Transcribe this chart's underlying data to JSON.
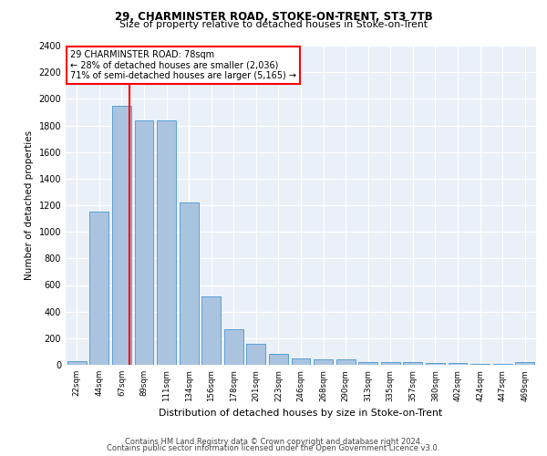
{
  "title1": "29, CHARMINSTER ROAD, STOKE-ON-TRENT, ST3 7TB",
  "title2": "Size of property relative to detached houses in Stoke-on-Trent",
  "xlabel": "Distribution of detached houses by size in Stoke-on-Trent",
  "ylabel": "Number of detached properties",
  "categories": [
    "22sqm",
    "44sqm",
    "67sqm",
    "89sqm",
    "111sqm",
    "134sqm",
    "156sqm",
    "178sqm",
    "201sqm",
    "223sqm",
    "246sqm",
    "268sqm",
    "290sqm",
    "313sqm",
    "335sqm",
    "357sqm",
    "380sqm",
    "402sqm",
    "424sqm",
    "447sqm",
    "469sqm"
  ],
  "values": [
    30,
    1150,
    1950,
    1840,
    1840,
    1220,
    515,
    265,
    155,
    85,
    45,
    40,
    38,
    22,
    20,
    18,
    15,
    12,
    10,
    10,
    20
  ],
  "bar_color": "#aac4e0",
  "bar_edge_color": "#5a9fd4",
  "vline_color": "red",
  "annotation_text": "29 CHARMINSTER ROAD: 78sqm\n← 28% of detached houses are smaller (2,036)\n71% of semi-detached houses are larger (5,165) →",
  "annotation_box_color": "white",
  "annotation_box_edge": "red",
  "ylim": [
    0,
    2400
  ],
  "yticks": [
    0,
    200,
    400,
    600,
    800,
    1000,
    1200,
    1400,
    1600,
    1800,
    2000,
    2200,
    2400
  ],
  "bg_color": "#eaf0f8",
  "footer1": "Contains HM Land Registry data © Crown copyright and database right 2024.",
  "footer2": "Contains public sector information licensed under the Open Government Licence v3.0."
}
